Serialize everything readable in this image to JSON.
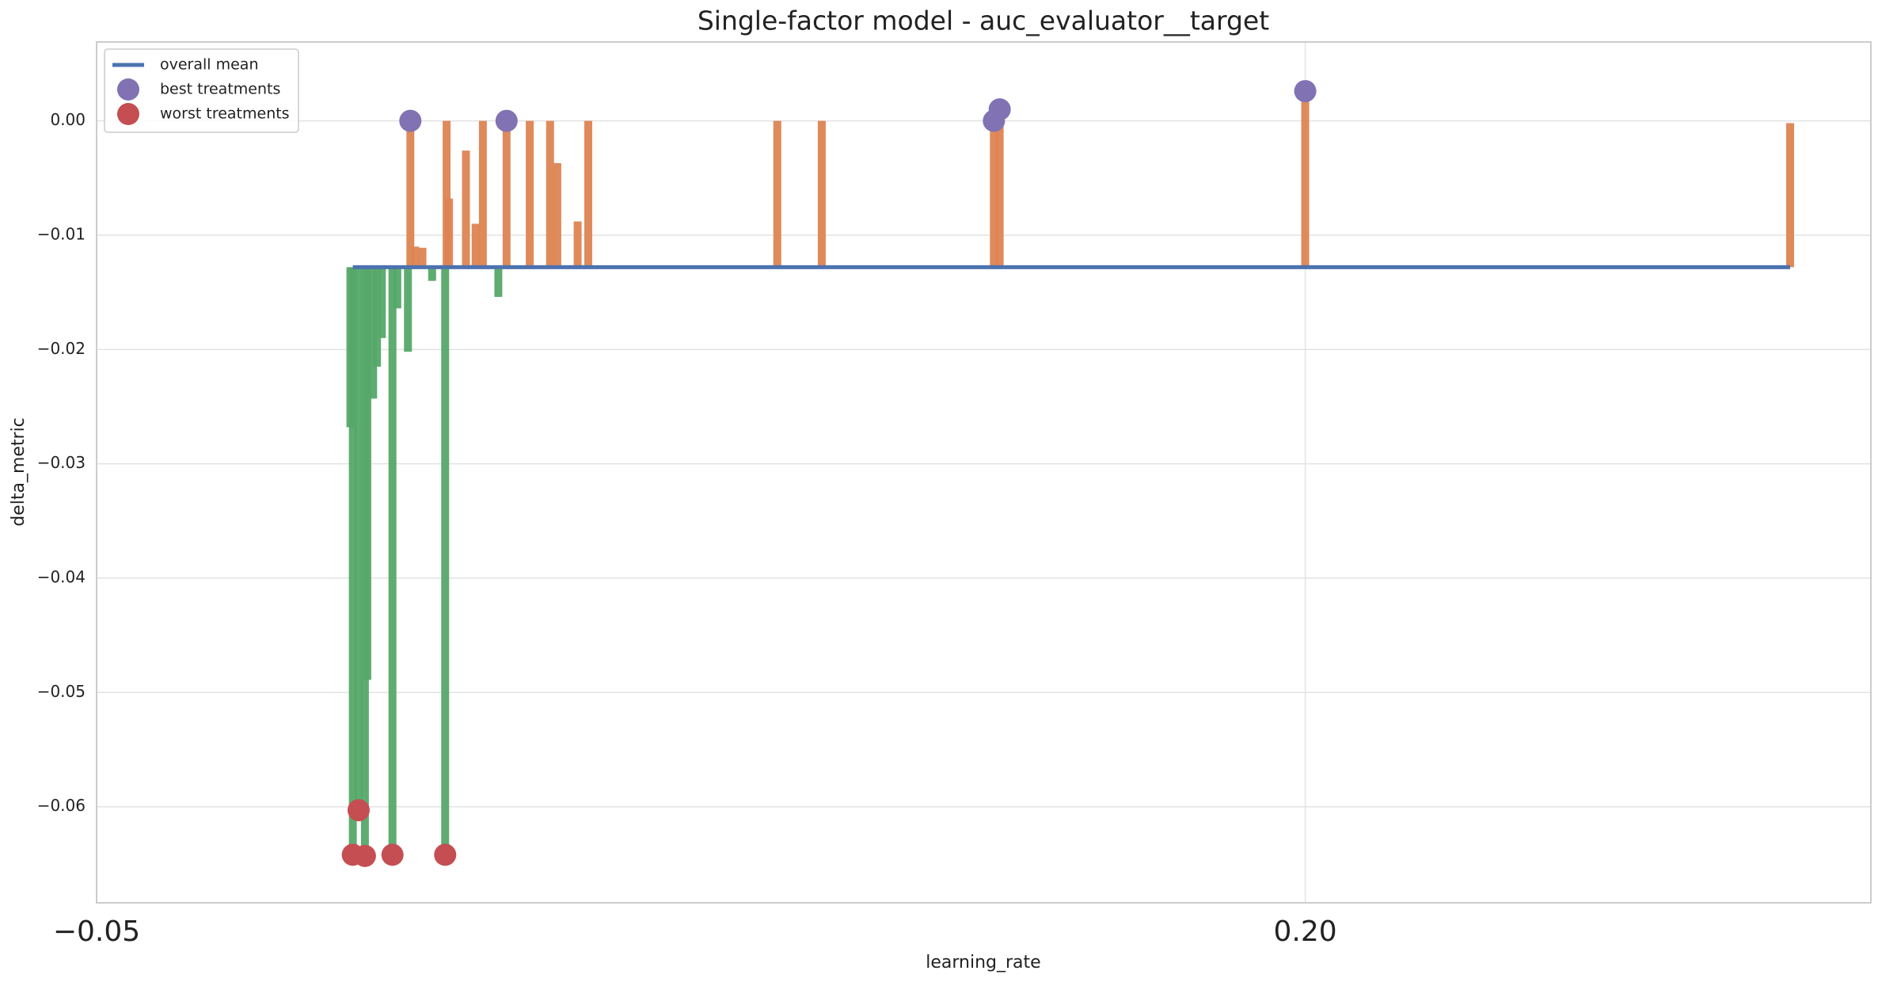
{
  "chart_data": {
    "type": "combo",
    "title": "Single-factor model - auc_evaluator__target",
    "xlabel": "learning_rate",
    "ylabel": "delta_metric",
    "xlim": [
      -0.05,
      0.317
    ],
    "ylim": [
      -0.0684,
      0.0069
    ],
    "xticks": [
      {
        "value": -0.05,
        "label": "−0.05"
      },
      {
        "value": 0.2,
        "label": "0.20"
      }
    ],
    "yticks": [
      {
        "value": 0.0,
        "label": "0.00"
      },
      {
        "value": -0.01,
        "label": "−0.01"
      },
      {
        "value": -0.02,
        "label": "−0.02"
      },
      {
        "value": -0.03,
        "label": "−0.03"
      },
      {
        "value": -0.04,
        "label": "−0.04"
      },
      {
        "value": -0.05,
        "label": "−0.05"
      },
      {
        "value": -0.06,
        "label": "−0.06"
      }
    ],
    "grid": true,
    "legend": "upper left",
    "bars": {
      "above_color": "#dd8452",
      "below_color": "#55a868",
      "x": [
        0.0025,
        0.003,
        0.0042,
        0.0055,
        0.006,
        0.0072,
        0.008,
        0.009,
        0.0112,
        0.0122,
        0.0144,
        0.0149,
        0.0159,
        0.0174,
        0.0194,
        0.0221,
        0.0224,
        0.0229,
        0.0264,
        0.0284,
        0.0299,
        0.0331,
        0.0348,
        0.0396,
        0.0438,
        0.0453,
        0.0495,
        0.0517,
        0.0908,
        0.1,
        0.1356,
        0.1368,
        0.2,
        0.3003
      ],
      "values": [
        -0.0268,
        -0.0642,
        -0.0603,
        -0.0643,
        -0.0489,
        -0.0243,
        -0.0215,
        -0.019,
        -0.0642,
        -0.0164,
        -0.0202,
        0.0,
        -0.011,
        -0.0111,
        -0.014,
        -0.0642,
        0.0,
        -0.0068,
        -0.0026,
        -0.009,
        0.0,
        -0.0154,
        0.0,
        0.0,
        0.0,
        -0.0037,
        -0.0088,
        0.0,
        0.0,
        0.0,
        0.0,
        0.001,
        0.0026,
        -0.0002
      ]
    },
    "series": [
      {
        "name": "overall mean",
        "type": "line",
        "color": "#4c72b0",
        "x": [
          0.003,
          0.3003
        ],
        "values": [
          -0.0128,
          -0.0128
        ]
      },
      {
        "name": "best treatments",
        "type": "scatter",
        "color": "#8172b3",
        "x": [
          0.0149,
          0.0348,
          0.1356,
          0.1368,
          0.2
        ],
        "values": [
          0.0,
          0.0,
          0.0,
          0.001,
          0.0026
        ]
      },
      {
        "name": "worst treatments",
        "type": "scatter",
        "color": "#c44e52",
        "x": [
          0.003,
          0.0042,
          0.0055,
          0.0112,
          0.0221
        ],
        "values": [
          -0.0642,
          -0.0603,
          -0.0643,
          -0.0642,
          -0.0642
        ]
      }
    ]
  }
}
